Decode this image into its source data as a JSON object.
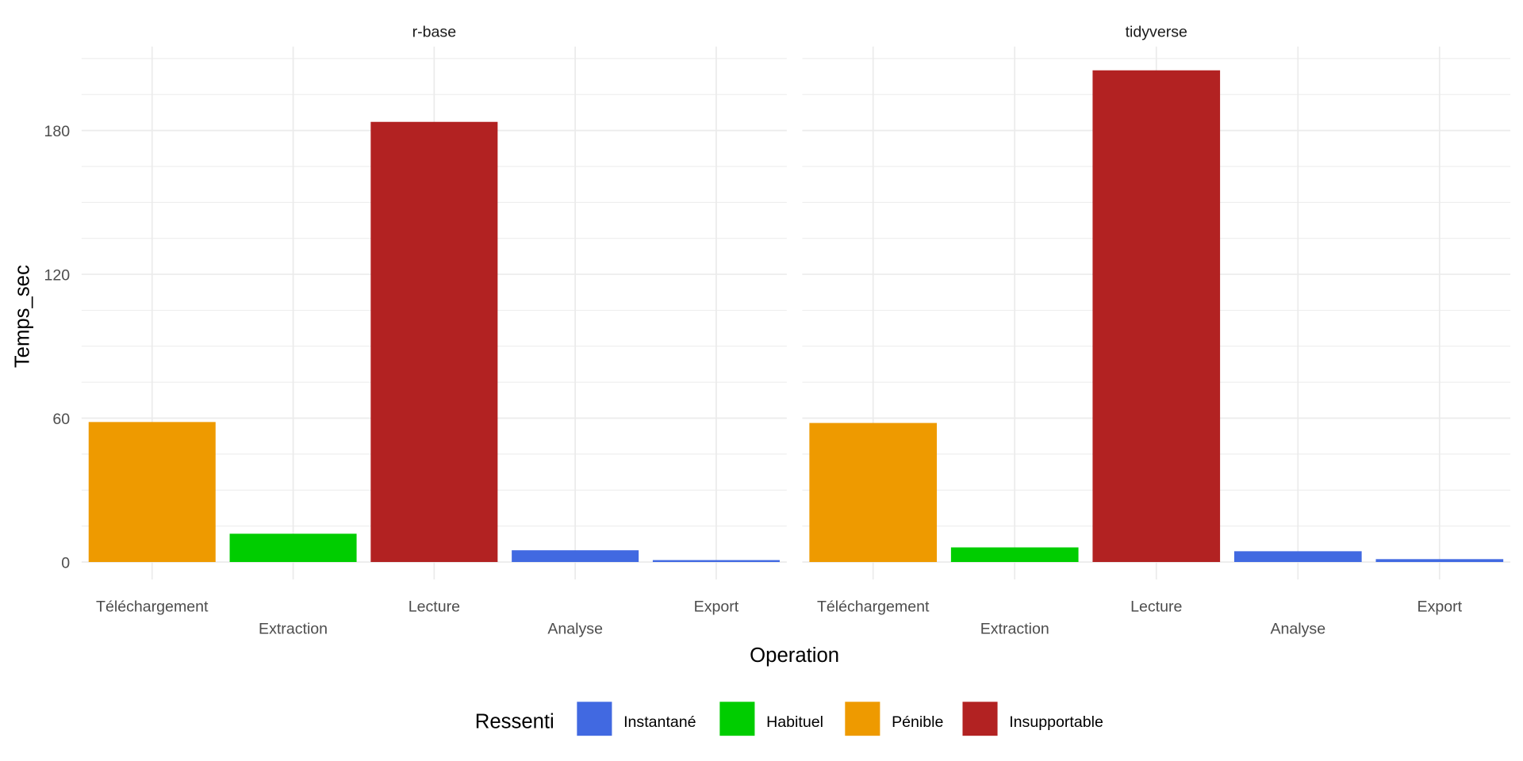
{
  "chart_data": {
    "type": "bar",
    "facets": [
      "r-base",
      "tidyverse"
    ],
    "categories": [
      "Téléchargement",
      "Extraction",
      "Lecture",
      "Analyse",
      "Export"
    ],
    "series": [
      {
        "name": "r-base",
        "values": [
          58.4,
          11.8,
          183.6,
          4.9,
          0.8
        ],
        "fill": [
          "Pénible",
          "Habituel",
          "Insupportable",
          "Instantané",
          "Instantané"
        ]
      },
      {
        "name": "tidyverse",
        "values": [
          58.0,
          6.1,
          205.1,
          4.5,
          1.2
        ],
        "fill": [
          "Pénible",
          "Habituel",
          "Insupportable",
          "Instantané",
          "Instantané"
        ]
      }
    ],
    "xlabel": "Operation",
    "ylabel": "Temps_sec",
    "ylim": [
      0,
      215
    ],
    "yticks": [
      0,
      60,
      120,
      180
    ],
    "grid": true,
    "legend": {
      "title": "Ressenti",
      "position": "bottom",
      "entries": [
        {
          "label": "Instantané",
          "color": "#4169E1"
        },
        {
          "label": "Habituel",
          "color": "#00CD00"
        },
        {
          "label": "Pénible",
          "color": "#EE9A00"
        },
        {
          "label": "Insupportable",
          "color": "#B22222"
        }
      ]
    }
  }
}
